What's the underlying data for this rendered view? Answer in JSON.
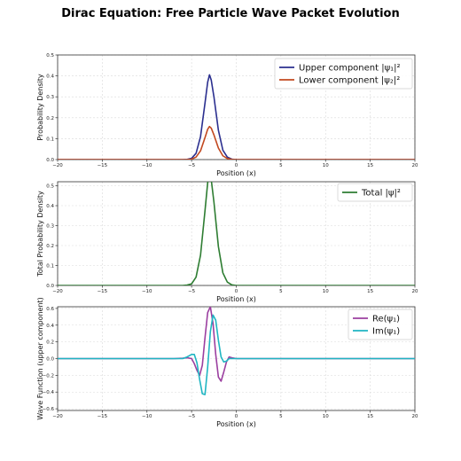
{
  "title": "Dirac Equation: Free Particle Wave Packet Evolution",
  "colors": {
    "upper": "#2b2f8f",
    "lower": "#c2481f",
    "total": "#2e7d32",
    "re": "#9b3fa0",
    "im": "#1fb5c2",
    "grid": "#d9d9d9"
  },
  "chart_data": [
    {
      "type": "line",
      "xlabel": "Position (x)",
      "ylabel": "Probability Density",
      "xlim": [
        -20,
        20
      ],
      "ylim": [
        0,
        0.5
      ],
      "xticks": [
        -20,
        -15,
        -10,
        -5,
        0,
        5,
        10,
        15,
        20
      ],
      "yticks": [
        0.0,
        0.1,
        0.2,
        0.3,
        0.4,
        0.5
      ],
      "ytick_labels": [
        "0.0",
        "0.1",
        "0.2",
        "0.3",
        "0.4",
        "0.5"
      ],
      "grid": true,
      "legend_position": "top-right",
      "series": [
        {
          "name": "Upper component |ψ₁|²",
          "color_key": "upper",
          "x": [
            -20,
            -6,
            -5.5,
            -5,
            -4.5,
            -4,
            -3.5,
            -3.2,
            -3,
            -2.8,
            -2.5,
            -2,
            -1.5,
            -1,
            -0.5,
            0,
            20
          ],
          "y": [
            0,
            0,
            0.001,
            0.006,
            0.03,
            0.11,
            0.27,
            0.37,
            0.405,
            0.38,
            0.3,
            0.14,
            0.045,
            0.012,
            0.002,
            0,
            0
          ]
        },
        {
          "name": "Lower component |ψ₂|²",
          "color_key": "lower",
          "x": [
            -20,
            -6,
            -5.5,
            -5,
            -4.5,
            -4,
            -3.5,
            -3.2,
            -3,
            -2.8,
            -2.5,
            -2,
            -1.5,
            -1,
            -0.5,
            0,
            20
          ],
          "y": [
            0,
            0,
            0.0005,
            0.002,
            0.012,
            0.042,
            0.105,
            0.145,
            0.158,
            0.15,
            0.118,
            0.055,
            0.018,
            0.005,
            0.001,
            0,
            0
          ]
        }
      ]
    },
    {
      "type": "line",
      "xlabel": "Position (x)",
      "ylabel": "Total Probability Density",
      "xlim": [
        -20,
        20
      ],
      "ylim": [
        0,
        0.52
      ],
      "xticks": [
        -20,
        -15,
        -10,
        -5,
        0,
        5,
        10,
        15,
        20
      ],
      "yticks": [
        0.0,
        0.1,
        0.2,
        0.3,
        0.4,
        0.5
      ],
      "ytick_labels": [
        "0.0",
        "0.1",
        "0.2",
        "0.3",
        "0.4",
        "0.5"
      ],
      "grid": true,
      "legend_position": "top-right",
      "series": [
        {
          "name": "Total |ψ|²",
          "color_key": "total",
          "x": [
            -20,
            -6,
            -5.5,
            -5,
            -4.5,
            -4,
            -3.5,
            -3.2,
            -3,
            -2.8,
            -2.5,
            -2,
            -1.5,
            -1,
            -0.5,
            0,
            20
          ],
          "y": [
            0,
            0,
            0.002,
            0.008,
            0.042,
            0.152,
            0.375,
            0.515,
            0.56,
            0.53,
            0.418,
            0.195,
            0.063,
            0.017,
            0.003,
            0,
            0
          ]
        }
      ]
    },
    {
      "type": "line",
      "xlabel": "Position (x)",
      "ylabel": "Wave Function (upper component)",
      "xlim": [
        -20,
        20
      ],
      "ylim": [
        -0.62,
        0.62
      ],
      "xticks": [
        -20,
        -15,
        -10,
        -5,
        0,
        5,
        10,
        15,
        20
      ],
      "yticks": [
        -0.6,
        -0.4,
        -0.2,
        0.0,
        0.2,
        0.4,
        0.6
      ],
      "ytick_labels": [
        "−0.6",
        "−0.4",
        "−0.2",
        "0.0",
        "0.2",
        "0.4",
        "0.6"
      ],
      "grid": true,
      "legend_position": "top-right",
      "series": [
        {
          "name": "Re(ψ₁)",
          "color_key": "re",
          "x": [
            -20,
            -7,
            -6,
            -5.5,
            -5,
            -4.7,
            -4.4,
            -4.1,
            -3.8,
            -3.5,
            -3.2,
            -2.9,
            -2.6,
            -2.3,
            -2.0,
            -1.7,
            -1.4,
            -1.1,
            -0.8,
            -0.5,
            0,
            20
          ],
          "y": [
            0,
            0,
            0.005,
            0.01,
            0.0,
            -0.06,
            -0.14,
            -0.2,
            -0.08,
            0.25,
            0.55,
            0.62,
            0.42,
            0.05,
            -0.22,
            -0.27,
            -0.16,
            -0.04,
            0.02,
            0.01,
            0,
            0
          ]
        },
        {
          "name": "Im(ψ₁)",
          "color_key": "im",
          "x": [
            -20,
            -7,
            -6,
            -5.5,
            -5,
            -4.7,
            -4.4,
            -4.1,
            -3.8,
            -3.5,
            -3.2,
            -2.9,
            -2.6,
            -2.3,
            -2.0,
            -1.7,
            -1.4,
            -1.1,
            -0.8,
            -0.5,
            0,
            20
          ],
          "y": [
            0,
            0,
            0.0,
            0.02,
            0.05,
            0.05,
            -0.05,
            -0.25,
            -0.42,
            -0.43,
            -0.1,
            0.32,
            0.52,
            0.46,
            0.22,
            0.02,
            -0.04,
            -0.03,
            0.0,
            0.0,
            0,
            0
          ]
        }
      ]
    }
  ]
}
